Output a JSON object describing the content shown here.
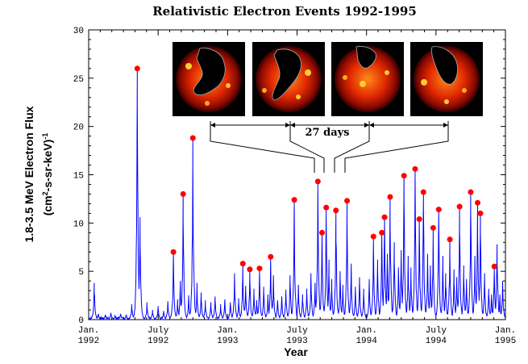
{
  "chart_data": {
    "type": "line",
    "title": "Relativistic Electron Events 1992-1995",
    "xlabel": "Year",
    "ylabel_line1": "1.8-3.5 MeV Electron Flux",
    "ylabel_line2": "(cm",
    "ylabel_sup1": "2",
    "ylabel_line2b": "-s-sr-keV)",
    "ylabel_sup2": "-1",
    "xlim": [
      1992.0,
      1995.0
    ],
    "ylim": [
      0,
      30
    ],
    "y_ticks": [
      0,
      5,
      10,
      15,
      20,
      25,
      30
    ],
    "x_ticks": [
      {
        "x": 1992.0,
        "line1": "Jan.",
        "line2": "1992"
      },
      {
        "x": 1992.5,
        "line1": "July",
        "line2": "1992"
      },
      {
        "x": 1993.0,
        "line1": "Jan.",
        "line2": "1993"
      },
      {
        "x": 1993.5,
        "line1": "July",
        "line2": "1993"
      },
      {
        "x": 1994.0,
        "line1": "Jan.",
        "line2": "1994"
      },
      {
        "x": 1994.5,
        "line1": "July",
        "line2": "1994"
      },
      {
        "x": 1995.0,
        "line1": "Jan.",
        "line2": "1995"
      }
    ],
    "series_color": "#0000ff",
    "marker_color": "#ff0000",
    "event_peaks": [
      {
        "x": 1992.35,
        "y": 26.0
      },
      {
        "x": 1992.61,
        "y": 7.0
      },
      {
        "x": 1992.68,
        "y": 13.0
      },
      {
        "x": 1992.75,
        "y": 18.8
      },
      {
        "x": 1993.11,
        "y": 5.8
      },
      {
        "x": 1993.16,
        "y": 5.2
      },
      {
        "x": 1993.23,
        "y": 5.3
      },
      {
        "x": 1993.31,
        "y": 6.5
      },
      {
        "x": 1993.48,
        "y": 12.4
      },
      {
        "x": 1993.65,
        "y": 14.3
      },
      {
        "x": 1993.68,
        "y": 9.0
      },
      {
        "x": 1993.71,
        "y": 11.6
      },
      {
        "x": 1993.78,
        "y": 11.3
      },
      {
        "x": 1993.86,
        "y": 12.3
      },
      {
        "x": 1994.05,
        "y": 8.6
      },
      {
        "x": 1994.11,
        "y": 9.0
      },
      {
        "x": 1994.13,
        "y": 10.6
      },
      {
        "x": 1994.17,
        "y": 12.7
      },
      {
        "x": 1994.27,
        "y": 14.9
      },
      {
        "x": 1994.35,
        "y": 15.6
      },
      {
        "x": 1994.38,
        "y": 10.4
      },
      {
        "x": 1994.41,
        "y": 13.2
      },
      {
        "x": 1994.48,
        "y": 9.5
      },
      {
        "x": 1994.52,
        "y": 11.4
      },
      {
        "x": 1994.6,
        "y": 8.3
      },
      {
        "x": 1994.67,
        "y": 11.7
      },
      {
        "x": 1994.75,
        "y": 13.2
      },
      {
        "x": 1994.8,
        "y": 12.1
      },
      {
        "x": 1994.82,
        "y": 11.0
      },
      {
        "x": 1994.92,
        "y": 5.5
      }
    ],
    "background_spikes": [
      [
        1992.04,
        3.8
      ],
      [
        1992.07,
        0.6
      ],
      [
        1992.12,
        0.5
      ],
      [
        1992.16,
        0.7
      ],
      [
        1992.19,
        0.4
      ],
      [
        1992.23,
        0.6
      ],
      [
        1992.27,
        0.5
      ],
      [
        1992.31,
        1.6
      ],
      [
        1992.37,
        10.6
      ],
      [
        1992.42,
        1.8
      ],
      [
        1992.46,
        1.0
      ],
      [
        1992.5,
        1.4
      ],
      [
        1992.54,
        0.9
      ],
      [
        1992.57,
        1.9
      ],
      [
        1992.64,
        2.1
      ],
      [
        1992.66,
        4.0
      ],
      [
        1992.72,
        2.5
      ],
      [
        1992.78,
        3.8
      ],
      [
        1992.81,
        2.8
      ],
      [
        1992.84,
        2.0
      ],
      [
        1992.88,
        1.8
      ],
      [
        1992.91,
        2.4
      ],
      [
        1992.95,
        1.6
      ],
      [
        1992.98,
        2.1
      ],
      [
        1993.02,
        1.8
      ],
      [
        1993.05,
        4.8
      ],
      [
        1993.08,
        2.2
      ],
      [
        1993.13,
        3.5
      ],
      [
        1993.19,
        3.2
      ],
      [
        1993.21,
        2.0
      ],
      [
        1993.26,
        3.4
      ],
      [
        1993.29,
        2.6
      ],
      [
        1993.33,
        4.6
      ],
      [
        1993.36,
        2.0
      ],
      [
        1993.39,
        2.4
      ],
      [
        1993.42,
        3.1
      ],
      [
        1993.45,
        4.6
      ],
      [
        1993.51,
        3.6
      ],
      [
        1993.54,
        2.6
      ],
      [
        1993.57,
        3.2
      ],
      [
        1993.6,
        4.8
      ],
      [
        1993.63,
        3.8
      ],
      [
        1993.73,
        6.2
      ],
      [
        1993.75,
        4.2
      ],
      [
        1993.81,
        5.0
      ],
      [
        1993.83,
        3.6
      ],
      [
        1993.89,
        5.8
      ],
      [
        1993.92,
        3.4
      ],
      [
        1993.95,
        4.4
      ],
      [
        1993.98,
        3.2
      ],
      [
        1994.02,
        4.2
      ],
      [
        1994.08,
        6.2
      ],
      [
        1994.15,
        6.8
      ],
      [
        1994.2,
        8.0
      ],
      [
        1994.23,
        5.4
      ],
      [
        1994.25,
        7.2
      ],
      [
        1994.3,
        6.6
      ],
      [
        1994.32,
        5.4
      ],
      [
        1994.44,
        6.8
      ],
      [
        1994.46,
        5.6
      ],
      [
        1994.55,
        6.6
      ],
      [
        1994.57,
        4.8
      ],
      [
        1994.63,
        5.2
      ],
      [
        1994.65,
        4.4
      ],
      [
        1994.7,
        5.6
      ],
      [
        1994.72,
        4.2
      ],
      [
        1994.78,
        6.6
      ],
      [
        1994.85,
        4.8
      ],
      [
        1994.88,
        3.2
      ],
      [
        1994.9,
        2.6
      ],
      [
        1994.94,
        7.8
      ],
      [
        1994.96,
        2.6
      ],
      [
        1994.98,
        4.0
      ]
    ],
    "annotation_label": "27 days",
    "annotation_span_x": [
      1993.62,
      1994.46
    ]
  }
}
